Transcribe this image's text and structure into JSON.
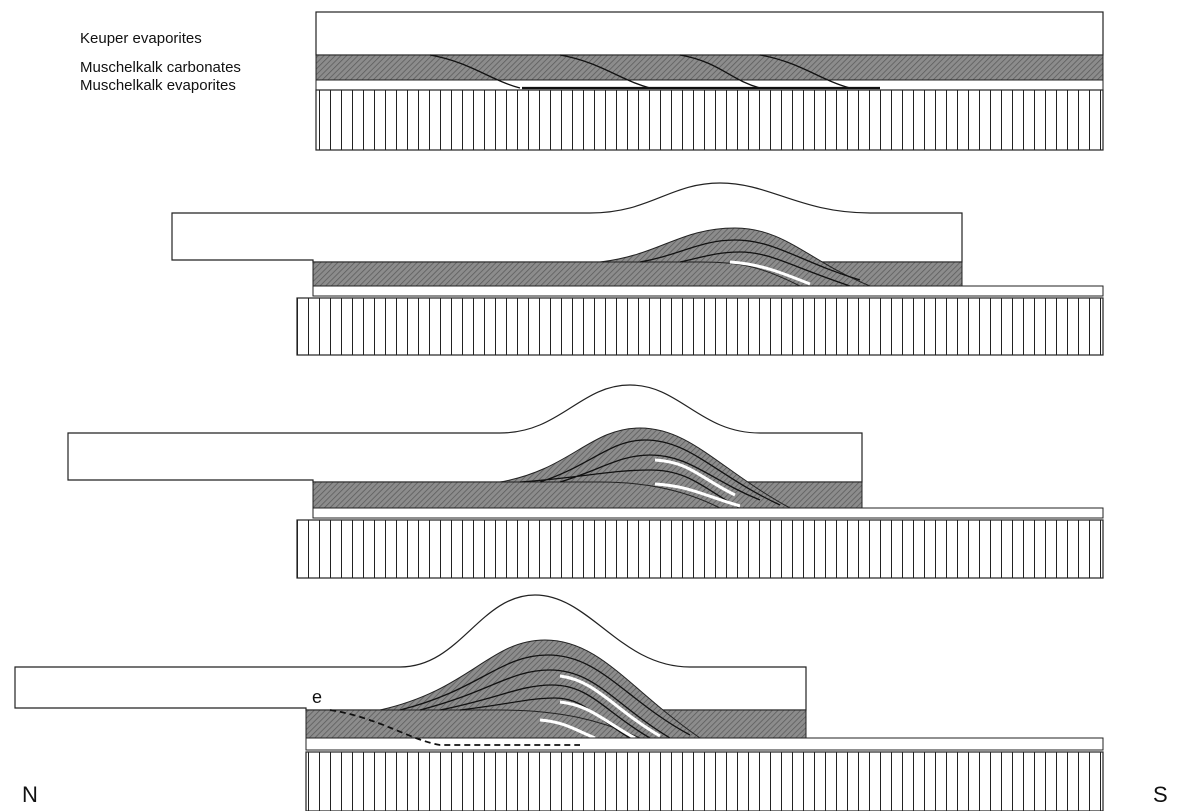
{
  "legend": [
    "Keuper evaporites",
    "Muschelkalk carbonates",
    "Muschelkalk evaporites"
  ],
  "point_label": "e",
  "directions": [
    "N",
    "S"
  ]
}
